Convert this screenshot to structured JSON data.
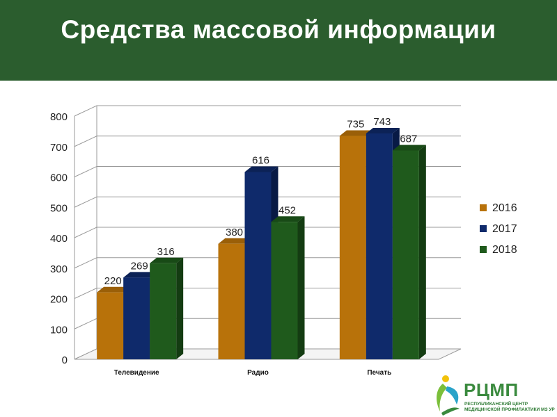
{
  "header": {
    "title": "Средства массовой информации"
  },
  "colors": {
    "header_bg": "#2b5d2e",
    "series": [
      "#b8720a",
      "#0f2a6b",
      "#1f5a1c"
    ],
    "series_side": [
      "#7a4a05",
      "#081a45",
      "#143c12"
    ],
    "series_top": [
      "#9a5f08",
      "#0c2256",
      "#184a16"
    ]
  },
  "chart_data": {
    "type": "bar",
    "categories": [
      "Телевидение",
      "Радио",
      "Печать"
    ],
    "series": [
      {
        "name": "2016",
        "values": [
          220,
          380,
          735
        ]
      },
      {
        "name": "2017",
        "values": [
          269,
          616,
          743
        ]
      },
      {
        "name": "2018",
        "values": [
          316,
          452,
          687
        ]
      }
    ],
    "data_labels": [
      [
        "220",
        "380",
        "735"
      ],
      [
        "269",
        "616",
        "743"
      ],
      [
        "316",
        "452",
        "687"
      ]
    ],
    "ylim": [
      0,
      800
    ],
    "yticks": [
      0,
      100,
      200,
      300,
      400,
      500,
      600,
      700,
      800
    ],
    "grid": true,
    "legend": "right",
    "style": "3d-clustered-column"
  },
  "logo": {
    "name": "РЦМП",
    "line1": "РЕСПУБЛИКАНСКИЙ ЦЕНТР",
    "line2": "МЕДИЦИНСКОЙ ПРОФИЛАКТИКИ МЗ УР",
    "icon": "person-leaf-logo-icon"
  }
}
